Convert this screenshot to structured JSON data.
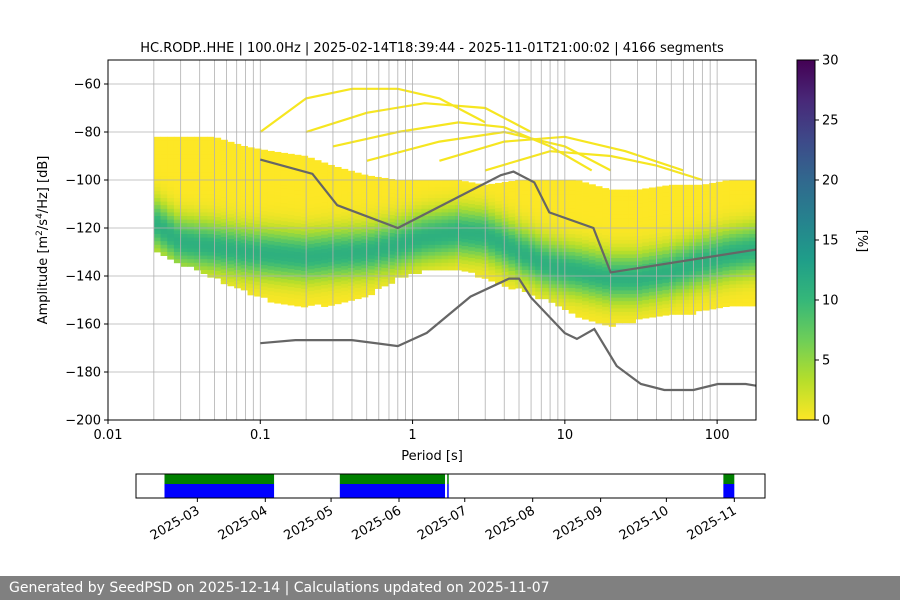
{
  "chart_data": [
    {
      "type": "heatmap",
      "title": "HC.RODP..HHE | 100.0Hz | 2025-02-14T18:39:44 - 2025-11-01T21:00:02 | 4166 segments",
      "xlabel": "Period [s]",
      "ylabel": "Amplitude [m²/s⁴/Hz] [dB]",
      "xscale": "log",
      "xlim": [
        0.01,
        180
      ],
      "ylim": [
        -200,
        -50
      ],
      "x_ticks": [
        {
          "v": 0.01,
          "label": "0.01"
        },
        {
          "v": 0.1,
          "label": "0.1"
        },
        {
          "v": 1,
          "label": "1"
        },
        {
          "v": 10,
          "label": "10"
        },
        {
          "v": 100,
          "label": "100"
        }
      ],
      "y_ticks": [
        {
          "v": -60,
          "label": "−60"
        },
        {
          "v": -80,
          "label": "−80"
        },
        {
          "v": -100,
          "label": "−100"
        },
        {
          "v": -120,
          "label": "−120"
        },
        {
          "v": -140,
          "label": "−140"
        },
        {
          "v": -160,
          "label": "−160"
        },
        {
          "v": -180,
          "label": "−180"
        },
        {
          "v": -200,
          "label": "−200"
        }
      ],
      "grid": true,
      "colormap": "viridis_r",
      "colorbar": {
        "label": "[%]",
        "range": [
          0,
          30
        ],
        "ticks": [
          {
            "v": 0,
            "label": "0"
          },
          {
            "v": 5,
            "label": "5"
          },
          {
            "v": 10,
            "label": "10"
          },
          {
            "v": 15,
            "label": "15"
          },
          {
            "v": 20,
            "label": "20"
          },
          {
            "v": 25,
            "label": "25"
          },
          {
            "v": 30,
            "label": "30"
          }
        ]
      },
      "psd_band": {
        "periods": [
          0.02,
          0.03,
          0.05,
          0.08,
          0.12,
          0.2,
          0.3,
          0.5,
          0.8,
          1.2,
          2,
          3,
          5,
          8,
          12,
          20,
          30,
          50,
          80,
          120,
          180
        ],
        "upper": [
          -82,
          -82,
          -82,
          -86,
          -88,
          -90,
          -94,
          -98,
          -100,
          -100,
          -100,
          -102,
          -100,
          -100,
          -100,
          -104,
          -104,
          -102,
          -102,
          -100,
          -100
        ],
        "lower": [
          -128,
          -134,
          -140,
          -146,
          -150,
          -152,
          -151,
          -148,
          -140,
          -137,
          -137,
          -140,
          -145,
          -150,
          -156,
          -160,
          -158,
          -156,
          -154,
          -152,
          -152
        ],
        "mode": [
          -118,
          -126,
          -128,
          -130,
          -131,
          -132,
          -131,
          -130,
          -127,
          -124,
          -122,
          -123,
          -130,
          -136,
          -138,
          -141,
          -141,
          -138,
          -134,
          -131,
          -129
        ]
      },
      "psd_arcs": [
        {
          "periods": [
            0.1,
            0.2,
            0.4,
            0.8,
            1.5,
            3
          ],
          "values": [
            -80,
            -66,
            -62,
            -62,
            -66,
            -76
          ]
        },
        {
          "periods": [
            0.2,
            0.5,
            1.2,
            3,
            6
          ],
          "values": [
            -80,
            -72,
            -68,
            -70,
            -80
          ]
        },
        {
          "periods": [
            0.3,
            0.8,
            2,
            4,
            8,
            15
          ],
          "values": [
            -86,
            -80,
            -76,
            -78,
            -86,
            -96
          ]
        },
        {
          "periods": [
            0.5,
            1.5,
            4,
            10,
            20
          ],
          "values": [
            -92,
            -84,
            -80,
            -86,
            -96
          ]
        },
        {
          "periods": [
            1.5,
            4,
            10,
            25,
            60
          ],
          "values": [
            -92,
            -84,
            -82,
            -88,
            -96
          ]
        },
        {
          "periods": [
            3,
            8,
            20,
            40,
            80
          ],
          "values": [
            -96,
            -88,
            -90,
            -94,
            -100
          ]
        }
      ],
      "noise_models": [
        {
          "periods": [
            0.1,
            0.22,
            0.32,
            0.8,
            3.8,
            4.6,
            6.3,
            7.9,
            15.4,
            20,
            180
          ],
          "values": [
            -91.5,
            -97.4,
            -110.5,
            -120,
            -98,
            -96.5,
            -101,
            -113.5,
            -120,
            -138.5,
            -129
          ]
        },
        {
          "periods": [
            0.1,
            0.17,
            0.4,
            0.8,
            1.24,
            2.4,
            4.3,
            5,
            6,
            10,
            12,
            15.6,
            21.9,
            31.6,
            45,
            70,
            101,
            154,
            180
          ],
          "values": [
            -168,
            -166.7,
            -166.7,
            -169.2,
            -163.7,
            -148.6,
            -141.1,
            -141.1,
            -149,
            -163.8,
            -166.2,
            -162.1,
            -177.5,
            -185,
            -187.5,
            -187.5,
            -185,
            -185,
            -185.7
          ]
        }
      ]
    },
    {
      "type": "timeline",
      "date_range": [
        "2025-02-01",
        "2025-11-15"
      ],
      "x_ticks": [
        "2025-03",
        "2025-04",
        "2025-05",
        "2025-06",
        "2025-07",
        "2025-08",
        "2025-09",
        "2025-10",
        "2025-11"
      ],
      "coverage": [
        {
          "start": "2025-02-14",
          "end": "2025-04-05"
        },
        {
          "start": "2025-05-05",
          "end": "2025-06-22"
        },
        {
          "start": "2025-06-23",
          "end": "2025-06-23"
        },
        {
          "start": "2025-10-27",
          "end": "2025-11-01"
        }
      ],
      "colors": {
        "data": "#0000ff",
        "good": "#008000"
      }
    }
  ],
  "footer": {
    "text": "Generated by SeedPSD on 2025-12-14 | Calculations updated on 2025-11-07"
  }
}
